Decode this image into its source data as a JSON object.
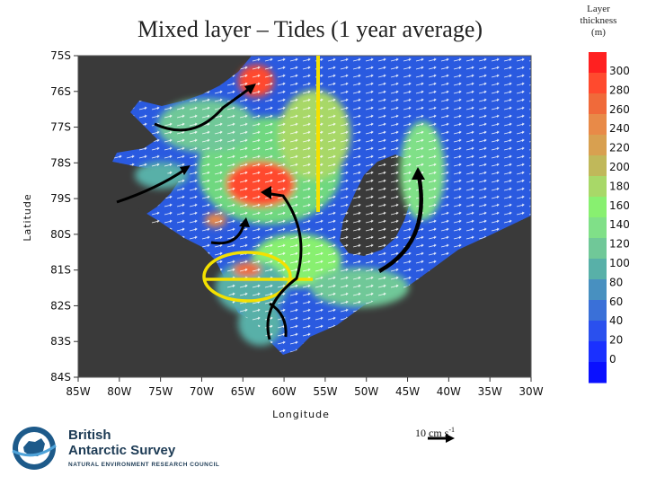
{
  "header": {
    "title": "Mixed layer – Tides (1 year average)"
  },
  "colorbar": {
    "title_lines": [
      "Layer",
      "thickness",
      "(m)"
    ],
    "ticks": [
      300,
      280,
      260,
      240,
      220,
      200,
      180,
      160,
      140,
      120,
      100,
      80,
      60,
      40,
      20,
      0
    ],
    "colors": [
      "#ff2020",
      "#ff4a2e",
      "#f06a3a",
      "#e88a48",
      "#d8a050",
      "#c0b85a",
      "#a8d868",
      "#88f070",
      "#80e088",
      "#70c898",
      "#58b0a8",
      "#4890c0",
      "#3a70d8",
      "#2a50ee",
      "#1a30ff",
      "#0a10ff"
    ]
  },
  "chart_data": {
    "type": "heatmap",
    "title": "Mixed layer – Tides (1 year average)",
    "xlabel": "Longitude",
    "ylabel": "Latitude",
    "x_ticks": [
      "85W",
      "80W",
      "75W",
      "70W",
      "65W",
      "60W",
      "55W",
      "50W",
      "45W",
      "40W",
      "35W",
      "30W"
    ],
    "y_ticks": [
      "75S",
      "76S",
      "77S",
      "78S",
      "79S",
      "80S",
      "81S",
      "82S",
      "83S",
      "84S"
    ],
    "xlim": [
      -85,
      -30
    ],
    "ylim": [
      -84,
      -75
    ],
    "colorbar_label": "Layer thickness (m)",
    "colorbar_range": [
      0,
      300
    ],
    "vector_reference": "10 cm s",
    "vector_reference_unit_exponent": "-1",
    "annotations": [
      "black flow arrows",
      "yellow line at 55W",
      "yellow ellipse near 63W 81S"
    ]
  },
  "logo": {
    "name_lines": [
      "British",
      "Antarctic Survey"
    ],
    "subtitle": "NATURAL ENVIRONMENT RESEARCH COUNCIL"
  }
}
